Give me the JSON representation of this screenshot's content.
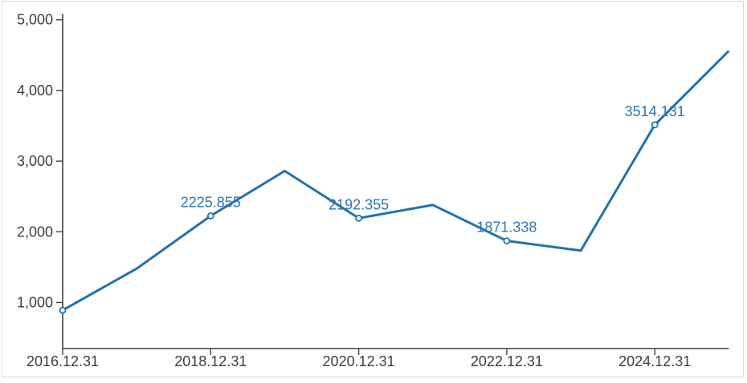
{
  "chart_data": {
    "type": "line",
    "title": "",
    "xlabel": "",
    "ylabel": "",
    "grid": false,
    "legend": "none",
    "x": [
      "2016.12.31",
      "2017.12.31",
      "2018.12.31",
      "2019.12.31",
      "2020.12.31",
      "2021.12.31",
      "2022.12.31",
      "2023.12.31",
      "2024.12.31",
      "2025.12.31"
    ],
    "series": [
      {
        "name": "value",
        "values": [
          890,
          1480,
          2225.855,
          2860,
          2192.355,
          2380,
          1871.338,
          1735,
          3514.131,
          4560
        ]
      }
    ],
    "point_labels": [
      {
        "x": "2018.12.31",
        "text": "2225.855"
      },
      {
        "x": "2020.12.31",
        "text": "2192.355"
      },
      {
        "x": "2022.12.31",
        "text": "1871.338"
      },
      {
        "x": "2024.12.31",
        "text": "3514.131"
      }
    ],
    "marker_x": [
      "2016.12.31",
      "2018.12.31",
      "2020.12.31",
      "2022.12.31",
      "2024.12.31"
    ],
    "x_tick_labels": [
      "2016.12.31",
      "2018.12.31",
      "2020.12.31",
      "2022.12.31",
      "2024.12.31"
    ],
    "y_tick_labels": [
      "1,000",
      "2,000",
      "3,000",
      "4,000",
      "5,000"
    ],
    "y_tick_values": [
      1000,
      2000,
      3000,
      4000,
      5000
    ],
    "ylim": [
      350,
      5100
    ],
    "colors": {
      "line": "#2073aa",
      "marker_fill": "#ffffff",
      "point_label": "#2e75b6",
      "axis": "#404040",
      "tick_text": "#3d3d3d",
      "frame_border": "#d6d6d6",
      "background": "#ffffff"
    }
  }
}
